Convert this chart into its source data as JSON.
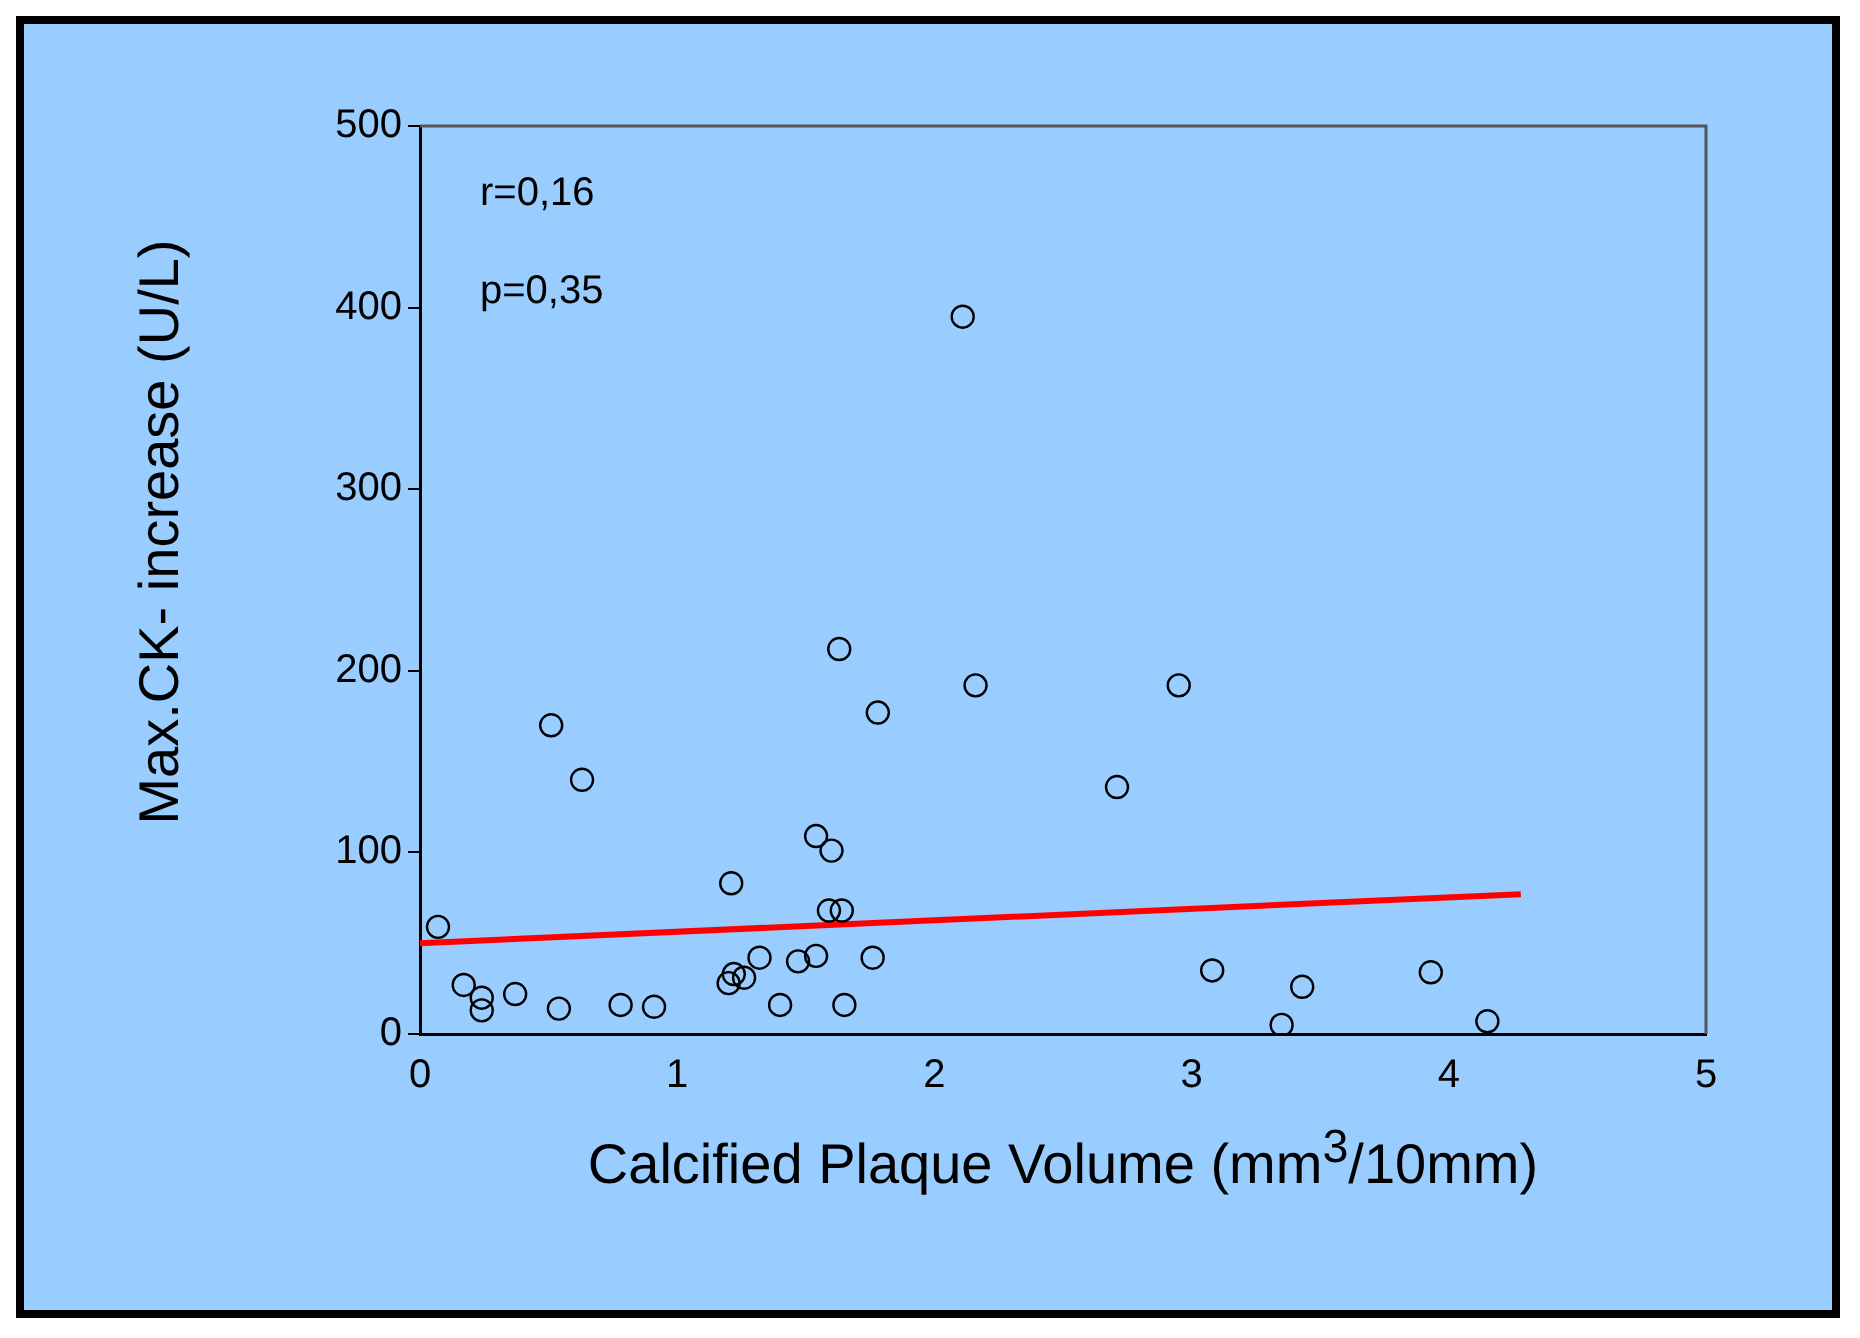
{
  "chart_data": {
    "type": "scatter",
    "xlabel": "Calcified Plaque Volume (mm$^{3}$/10mm)",
    "ylabel": "Max.CK- increase (U/L)",
    "annotations": [
      "r=0,16",
      "p=0,35"
    ],
    "xlim": [
      0,
      5
    ],
    "xticks": [
      0,
      1,
      2,
      3,
      4,
      5
    ],
    "ylim": [
      0,
      500
    ],
    "yticks": [
      0,
      100,
      200,
      300,
      400,
      500
    ],
    "grid": false,
    "legend": false,
    "marker": "circle",
    "series": [
      {
        "color": "#000000",
        "x": [
          0.07,
          0.17,
          0.24,
          0.24,
          0.37,
          0.54,
          0.51,
          0.63,
          0.78,
          0.91,
          1.21,
          1.2,
          1.22,
          1.26,
          1.32,
          1.4,
          1.47,
          1.54,
          1.54,
          1.6,
          1.59,
          1.64,
          1.65,
          1.63,
          1.78,
          1.76,
          2.11,
          2.16,
          2.71,
          2.95,
          3.08,
          3.35,
          3.43,
          3.93,
          4.15
        ],
        "values": [
          59,
          27,
          20,
          13,
          22,
          14,
          170,
          140,
          16,
          15,
          83,
          28,
          33,
          31,
          42,
          16,
          40,
          43,
          109,
          101,
          68,
          68,
          16,
          212,
          177,
          42,
          395,
          192,
          136,
          192,
          35,
          5,
          26,
          34,
          7
        ]
      },
      {
        "type": "line",
        "color": "#ff0000",
        "x": [
          0,
          4.28
        ],
        "values": [
          50,
          77
        ],
        "marker": "none"
      }
    ]
  }
}
